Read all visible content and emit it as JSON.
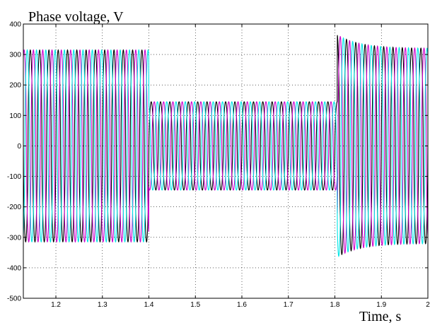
{
  "chart_data": {
    "type": "line",
    "title": "",
    "ylabel": "Phase voltage, V",
    "xlabel": "Time, s",
    "xlim": [
      1.13,
      2.0
    ],
    "ylim": [
      -500,
      400
    ],
    "x_ticks": [
      1.2,
      1.3,
      1.4,
      1.5,
      1.6,
      1.7,
      1.8,
      1.9,
      2
    ],
    "x_tick_labels": [
      "1.2",
      "1.3",
      "1.4",
      "1.5",
      "1.6",
      "1.7",
      "1.8",
      "1.9",
      "2"
    ],
    "y_ticks": [
      -500,
      -400,
      -300,
      -200,
      -100,
      0,
      100,
      200,
      300,
      400
    ],
    "y_tick_labels": [
      "-500",
      "-400",
      "-300",
      "-200",
      "-100",
      "0",
      "100",
      "200",
      "300",
      "400"
    ],
    "grid": true,
    "signal": {
      "frequency_hz": 50,
      "phase_shift_deg": 120,
      "segments": [
        {
          "t_start": 1.13,
          "t_end": 1.4,
          "amplitude": 315
        },
        {
          "t_start": 1.4,
          "t_end": 1.805,
          "amplitude": 145
        },
        {
          "t_start": 1.805,
          "t_end": 2.0,
          "amplitude_start": 365,
          "amplitude_end": 320
        }
      ]
    },
    "series": [
      {
        "phase_deg": 0,
        "color": "#000000"
      },
      {
        "phase_deg": -120,
        "color": "#cc00cc"
      },
      {
        "phase_deg": 120,
        "color": "#00e5e5"
      }
    ]
  }
}
